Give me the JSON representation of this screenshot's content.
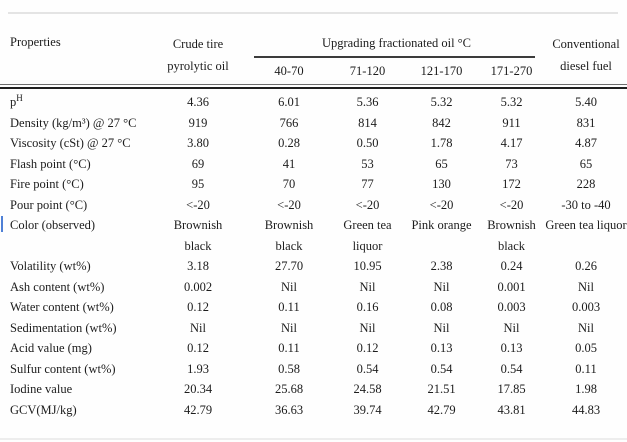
{
  "table": {
    "header": {
      "properties_label": "Properties",
      "crude_label": "Crude tire\npyrolytic oil",
      "group_label": "Upgrading fractionated oil °C",
      "temp_ranges": [
        "40-70",
        "71-120",
        "121-170",
        "171-270"
      ],
      "diesel_label": "Conventional\ndiesel fuel"
    },
    "rows": [
      {
        "property": "p",
        "property_sup": "H",
        "values": [
          "4.36",
          "6.01",
          "5.36",
          "5.32",
          "5.32",
          "5.40"
        ]
      },
      {
        "property": "Density (kg/m³) @ 27 °C",
        "values": [
          "919",
          "766",
          "814",
          "842",
          "911",
          "831"
        ]
      },
      {
        "property": "Viscosity (cSt) @ 27 °C",
        "values": [
          "3.80",
          "0.28",
          "0.50",
          "1.78",
          "4.17",
          "4.87"
        ]
      },
      {
        "property": "Flash point (°C)",
        "values": [
          "69",
          "41",
          "53",
          "65",
          "73",
          "65"
        ]
      },
      {
        "property": "Fire point (°C)",
        "values": [
          "95",
          "70",
          "77",
          "130",
          "172",
          "228"
        ]
      },
      {
        "property": "Pour point (°C)",
        "values": [
          "<-20",
          "<-20",
          "<-20",
          "<-20",
          "<-20",
          "-30 to -40"
        ]
      },
      {
        "property": "Color (observed)",
        "values": [
          "Brownish\nblack",
          "Brownish\nblack",
          "Green tea\nliquor",
          "Pink orange",
          "Brownish\nblack",
          "Green tea liquor"
        ]
      },
      {
        "property": "Volatility (wt%)",
        "values": [
          "3.18",
          "27.70",
          "10.95",
          "2.38",
          "0.24",
          "0.26"
        ]
      },
      {
        "property": "Ash content (wt%)",
        "values": [
          "0.002",
          "Nil",
          "Nil",
          "Nil",
          "0.001",
          "Nil"
        ]
      },
      {
        "property": "Water content (wt%)",
        "values": [
          "0.12",
          "0.11",
          "0.16",
          "0.08",
          "0.003",
          "0.003"
        ]
      },
      {
        "property": "Sedimentation (wt%)",
        "values": [
          "Nil",
          "Nil",
          "Nil",
          "Nil",
          "Nil",
          "Nil"
        ]
      },
      {
        "property": "Acid value (mg)",
        "values": [
          "0.12",
          "0.11",
          "0.12",
          "0.13",
          "0.13",
          "0.05"
        ]
      },
      {
        "property": "Sulfur content (wt%)",
        "values": [
          "1.93",
          "0.58",
          "0.54",
          "0.54",
          "0.54",
          "0.11"
        ]
      },
      {
        "property": "Iodine value",
        "values": [
          "20.34",
          "25.68",
          "24.58",
          "21.51",
          "17.85",
          "1.98"
        ]
      },
      {
        "property": "GCV(MJ/kg)",
        "values": [
          "42.79",
          "36.63",
          "39.74",
          "42.79",
          "43.81",
          "44.83"
        ]
      }
    ]
  },
  "colors": {
    "rule_light": "#e4e4e4",
    "rule_dark": "#1f1f1f",
    "text": "#1c1c1c",
    "cursor_artifact": "#4f80d6"
  }
}
